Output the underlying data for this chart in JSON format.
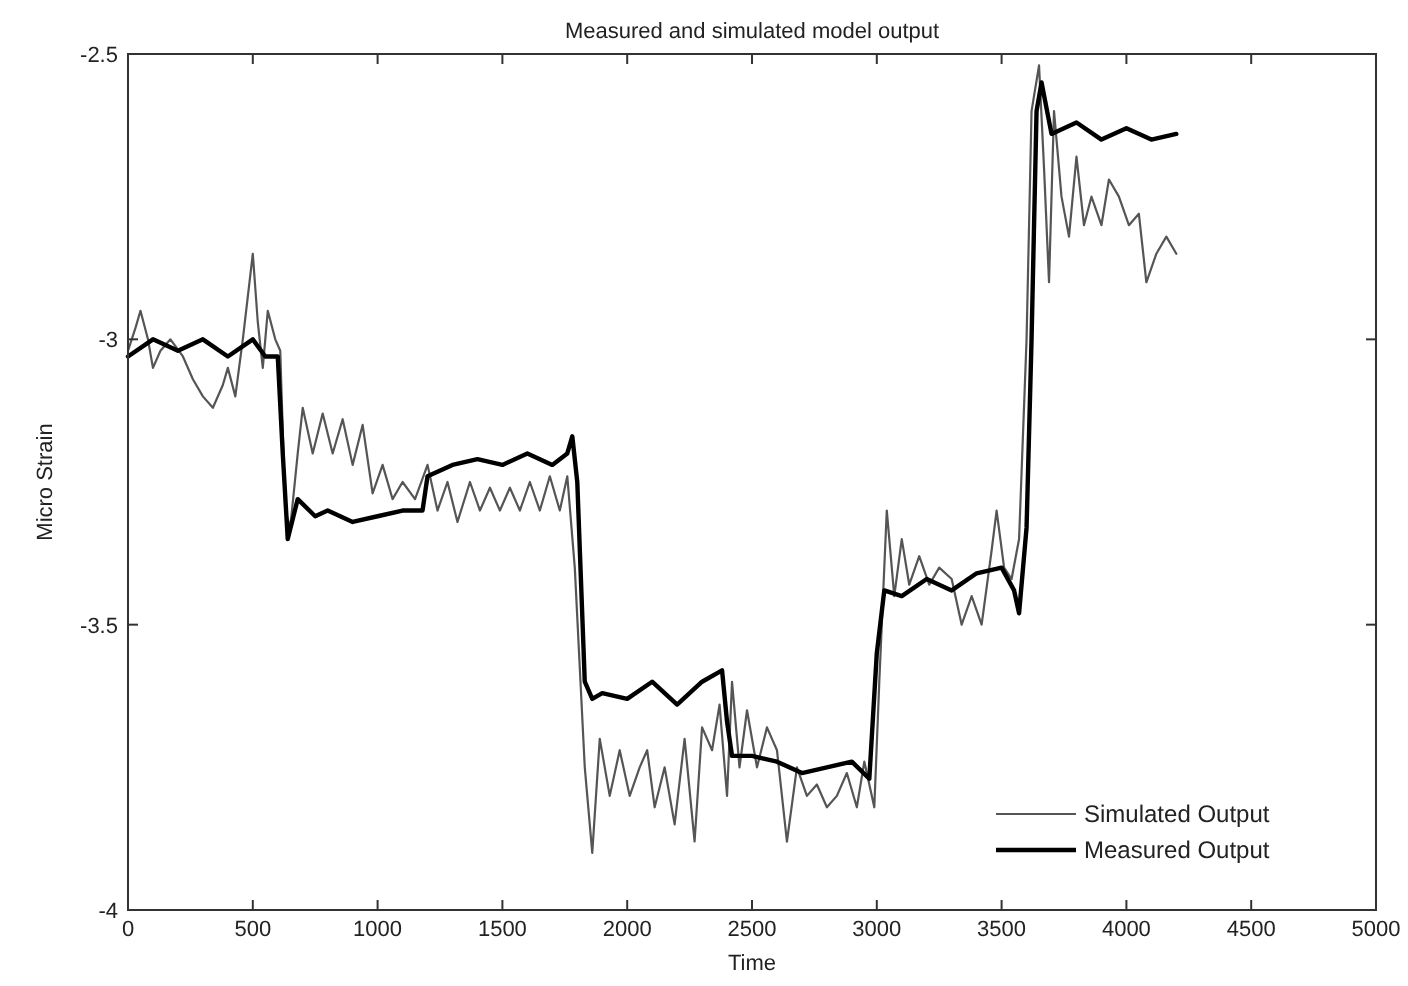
{
  "chart_data": {
    "type": "line",
    "title": "Measured and simulated model output",
    "xlabel": "Time",
    "ylabel": "Micro Strain",
    "xlim": [
      0,
      5000
    ],
    "xticks": [
      0,
      500,
      1000,
      1500,
      2000,
      2500,
      3000,
      3500,
      4000,
      4500,
      5000
    ],
    "ylim": [
      -4,
      -2.5
    ],
    "yticks": [
      -4,
      -3.5,
      -3,
      -2.5
    ],
    "grid": false,
    "legend": "bottom right",
    "marker": "none",
    "line_style": "solid",
    "series": [
      {
        "name": "Simulated Output",
        "color": "#555555",
        "x": [
          0,
          30,
          50,
          80,
          100,
          130,
          170,
          220,
          260,
          300,
          340,
          380,
          400,
          430,
          460,
          500,
          520,
          540,
          560,
          590,
          610,
          630,
          650,
          680,
          700,
          740,
          780,
          820,
          860,
          900,
          940,
          980,
          1020,
          1060,
          1100,
          1150,
          1200,
          1240,
          1280,
          1320,
          1370,
          1410,
          1450,
          1490,
          1530,
          1570,
          1610,
          1650,
          1690,
          1730,
          1760,
          1790,
          1830,
          1860,
          1890,
          1930,
          1970,
          2010,
          2050,
          2080,
          2110,
          2150,
          2190,
          2230,
          2270,
          2300,
          2340,
          2370,
          2400,
          2420,
          2450,
          2480,
          2520,
          2560,
          2600,
          2640,
          2680,
          2720,
          2760,
          2800,
          2840,
          2880,
          2920,
          2950,
          2990,
          3010,
          3040,
          3070,
          3100,
          3130,
          3170,
          3210,
          3250,
          3300,
          3340,
          3380,
          3420,
          3460,
          3480,
          3510,
          3540,
          3570,
          3600,
          3620,
          3650,
          3670,
          3690,
          3710,
          3740,
          3770,
          3800,
          3830,
          3860,
          3900,
          3930,
          3970,
          4010,
          4050,
          4080,
          4120,
          4160,
          4200
        ],
        "values": [
          -3.02,
          -2.98,
          -2.95,
          -3.0,
          -3.05,
          -3.02,
          -3.0,
          -3.03,
          -3.07,
          -3.1,
          -3.12,
          -3.08,
          -3.05,
          -3.1,
          -3.0,
          -2.85,
          -2.97,
          -3.05,
          -2.95,
          -3.0,
          -3.02,
          -3.3,
          -3.33,
          -3.2,
          -3.12,
          -3.2,
          -3.13,
          -3.2,
          -3.14,
          -3.22,
          -3.15,
          -3.27,
          -3.22,
          -3.28,
          -3.25,
          -3.28,
          -3.22,
          -3.3,
          -3.25,
          -3.32,
          -3.25,
          -3.3,
          -3.26,
          -3.3,
          -3.26,
          -3.3,
          -3.25,
          -3.3,
          -3.24,
          -3.3,
          -3.24,
          -3.4,
          -3.75,
          -3.9,
          -3.7,
          -3.8,
          -3.72,
          -3.8,
          -3.75,
          -3.72,
          -3.82,
          -3.75,
          -3.85,
          -3.7,
          -3.88,
          -3.68,
          -3.72,
          -3.64,
          -3.8,
          -3.6,
          -3.75,
          -3.65,
          -3.75,
          -3.68,
          -3.72,
          -3.88,
          -3.75,
          -3.8,
          -3.78,
          -3.82,
          -3.8,
          -3.76,
          -3.82,
          -3.74,
          -3.82,
          -3.6,
          -3.3,
          -3.45,
          -3.35,
          -3.43,
          -3.38,
          -3.43,
          -3.4,
          -3.42,
          -3.5,
          -3.45,
          -3.5,
          -3.37,
          -3.3,
          -3.4,
          -3.42,
          -3.35,
          -3.0,
          -2.6,
          -2.52,
          -2.7,
          -2.9,
          -2.6,
          -2.75,
          -2.82,
          -2.68,
          -2.8,
          -2.75,
          -2.8,
          -2.72,
          -2.75,
          -2.8,
          -2.78,
          -2.9,
          -2.85,
          -2.82,
          -2.85
        ]
      },
      {
        "name": "Measured Output",
        "color": "#000000",
        "x": [
          0,
          100,
          200,
          300,
          400,
          500,
          550,
          600,
          620,
          640,
          680,
          750,
          800,
          900,
          1000,
          1100,
          1180,
          1200,
          1300,
          1400,
          1500,
          1600,
          1700,
          1760,
          1780,
          1800,
          1830,
          1860,
          1900,
          2000,
          2100,
          2200,
          2300,
          2380,
          2400,
          2420,
          2500,
          2600,
          2700,
          2800,
          2900,
          2970,
          3000,
          3030,
          3100,
          3200,
          3300,
          3400,
          3500,
          3550,
          3570,
          3600,
          3620,
          3640,
          3660,
          3700,
          3800,
          3900,
          4000,
          4100,
          4200
        ],
        "values": [
          -3.03,
          -3.0,
          -3.02,
          -3.0,
          -3.03,
          -3.0,
          -3.03,
          -3.03,
          -3.2,
          -3.35,
          -3.28,
          -3.31,
          -3.3,
          -3.32,
          -3.31,
          -3.3,
          -3.3,
          -3.24,
          -3.22,
          -3.21,
          -3.22,
          -3.2,
          -3.22,
          -3.2,
          -3.17,
          -3.25,
          -3.6,
          -3.63,
          -3.62,
          -3.63,
          -3.6,
          -3.64,
          -3.6,
          -3.58,
          -3.67,
          -3.73,
          -3.73,
          -3.74,
          -3.76,
          -3.75,
          -3.74,
          -3.77,
          -3.55,
          -3.44,
          -3.45,
          -3.42,
          -3.44,
          -3.41,
          -3.4,
          -3.44,
          -3.48,
          -3.33,
          -3.0,
          -2.6,
          -2.55,
          -2.64,
          -2.62,
          -2.65,
          -2.63,
          -2.65,
          -2.64
        ]
      }
    ]
  }
}
